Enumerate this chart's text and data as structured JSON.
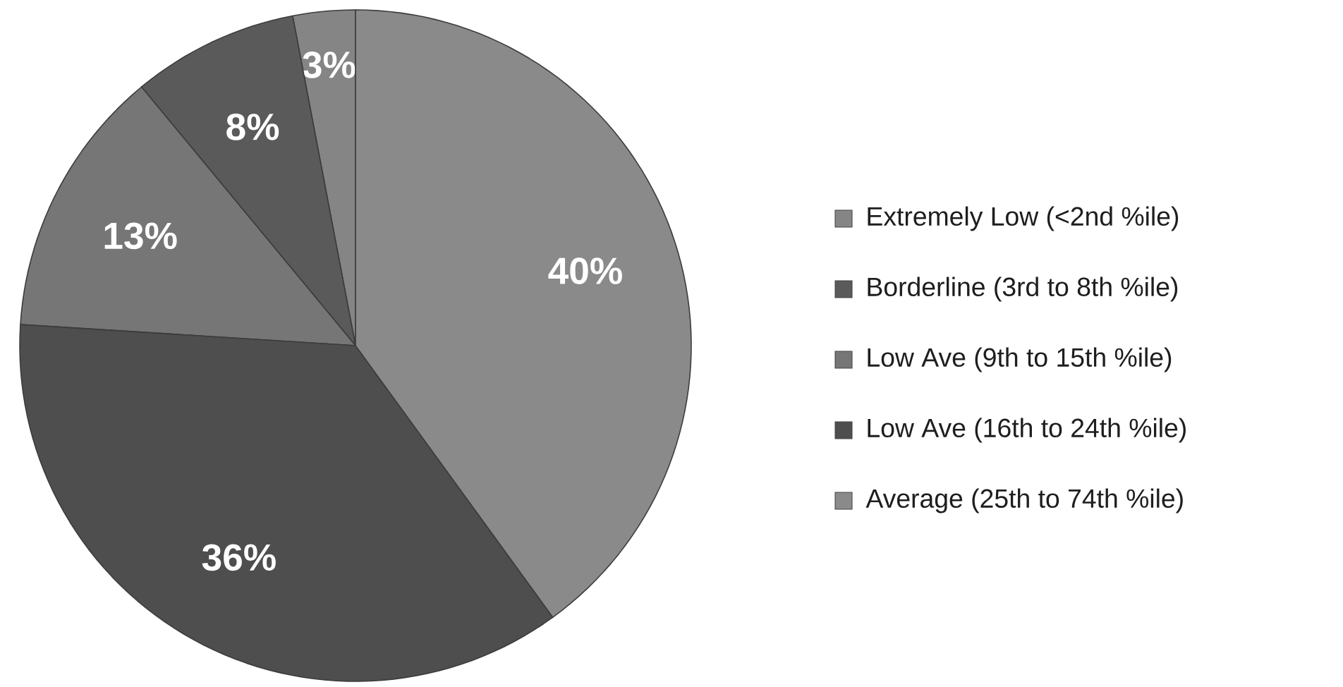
{
  "chart_data": {
    "type": "pie",
    "categories": [
      "Extremely Low (<2nd %ile)",
      "Borderline (3rd to 8th %ile)",
      "Low Ave (9th to 15th %ile)",
      "Low Ave (16th to 24th %ile)",
      "Average (25th to 74th %ile)"
    ],
    "values": [
      3,
      8,
      13,
      36,
      40
    ],
    "value_labels": [
      "3%",
      "8%",
      "13%",
      "36%",
      "40%"
    ],
    "colors": [
      "#858585",
      "#5a5a5a",
      "#767676",
      "#4e4e4e",
      "#8a8a8a"
    ],
    "legend": "right"
  }
}
